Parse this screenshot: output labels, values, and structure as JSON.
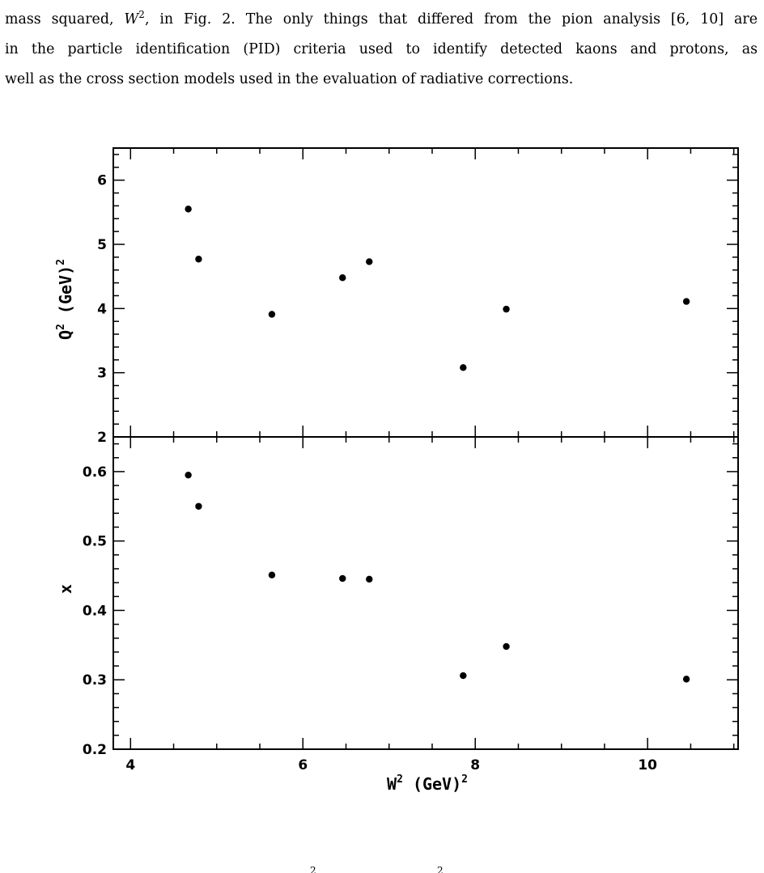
{
  "paragraph": {
    "line1_a": "mass squared, ",
    "line1_sym": "W",
    "line1_exp": "2",
    "line1_b": ", in Fig. 2. The only things that differed from the pion analysis [6, 10] are",
    "line2": "in the particle identification (PID) criteria used to identify detected kaons and protons, as",
    "line3": "well as the cross section models used in the evaluation of radiative corrections."
  },
  "chart_data": [
    {
      "type": "scatter",
      "panel": "top",
      "ylabel": "Q",
      "ylabel_exp": "2",
      "ylabel_unit": "(GeV)",
      "ylabel_unit_exp": "2",
      "xlim": [
        3.8,
        11.05
      ],
      "ylim": [
        2,
        6.5
      ],
      "yticks_labeled": [
        2,
        3,
        4,
        5,
        6
      ],
      "grid": false,
      "points": [
        {
          "x": 4.67,
          "y": 5.55
        },
        {
          "x": 4.79,
          "y": 4.77
        },
        {
          "x": 5.64,
          "y": 3.91
        },
        {
          "x": 6.46,
          "y": 4.48
        },
        {
          "x": 6.77,
          "y": 4.73
        },
        {
          "x": 7.86,
          "y": 3.08
        },
        {
          "x": 8.36,
          "y": 3.99
        },
        {
          "x": 10.45,
          "y": 4.11
        }
      ]
    },
    {
      "type": "scatter",
      "panel": "bottom",
      "ylabel": "x",
      "xlabel": "W",
      "xlabel_exp": "2",
      "xlabel_unit": "(GeV)",
      "xlabel_unit_exp": "2",
      "xlim": [
        3.8,
        11.05
      ],
      "ylim": [
        0.2,
        0.65
      ],
      "xticks_labeled": [
        4,
        6,
        8,
        10
      ],
      "yticks_labeled": [
        0.2,
        0.3,
        0.4,
        0.5,
        0.6
      ],
      "grid": false,
      "points": [
        {
          "x": 4.67,
          "y": 0.595
        },
        {
          "x": 4.79,
          "y": 0.55
        },
        {
          "x": 5.64,
          "y": 0.451
        },
        {
          "x": 6.46,
          "y": 0.446
        },
        {
          "x": 6.77,
          "y": 0.445
        },
        {
          "x": 7.86,
          "y": 0.306
        },
        {
          "x": 8.36,
          "y": 0.348
        },
        {
          "x": 10.45,
          "y": 0.301
        }
      ]
    }
  ],
  "caption_peek": {
    "exp1": "2",
    "exp2": "2"
  }
}
